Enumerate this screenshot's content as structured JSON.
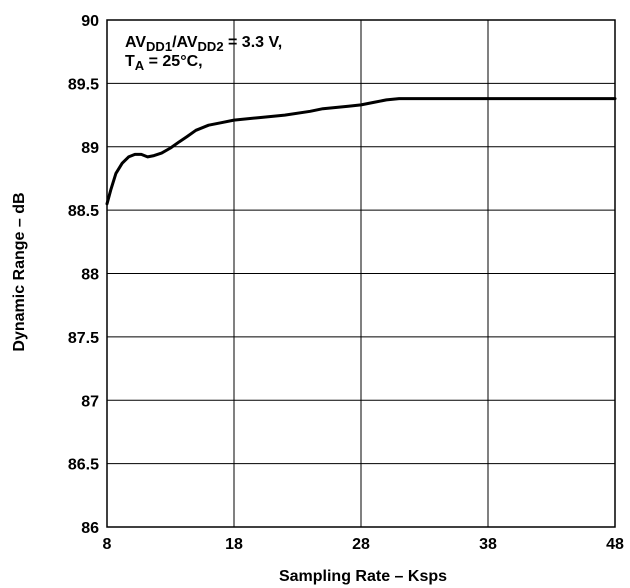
{
  "chart_data": {
    "type": "line",
    "title": "",
    "xlabel": "Sampling Rate – Ksps",
    "ylabel": "Dynamic Range – dB",
    "xlim": [
      8,
      48
    ],
    "ylim": [
      86,
      90
    ],
    "xticks": [
      8,
      18,
      28,
      38,
      48
    ],
    "xtick_labels": [
      "8",
      "18",
      "28",
      "38",
      "48"
    ],
    "yticks": [
      86,
      86.5,
      87,
      87.5,
      88,
      88.5,
      89,
      89.5,
      90
    ],
    "ytick_labels": [
      "86",
      "86.5",
      "87",
      "87.5",
      "88",
      "88.5",
      "89",
      "89.5",
      "90"
    ],
    "grid": true,
    "annotation": {
      "line1_a": "AV",
      "line1_sub1": "DD1",
      "line1_b": "/AV",
      "line1_sub2": "DD2",
      "line1_c": " = 3.3 V,",
      "line2_a": "T",
      "line2_sub": "A",
      "line2_b": " = 25°C,"
    },
    "series": [
      {
        "color": "#000000",
        "x": [
          8,
          8.3,
          8.7,
          9.2,
          9.7,
          10.2,
          10.7,
          11.2,
          11.7,
          12.3,
          13,
          13.7,
          14.3,
          15,
          16,
          17,
          18,
          20,
          22,
          24,
          25,
          26,
          27,
          28,
          29,
          30,
          31,
          34,
          38,
          42,
          46,
          48
        ],
        "y": [
          88.55,
          88.66,
          88.79,
          88.87,
          88.92,
          88.94,
          88.94,
          88.92,
          88.93,
          88.95,
          88.99,
          89.04,
          89.08,
          89.13,
          89.17,
          89.19,
          89.21,
          89.23,
          89.25,
          89.28,
          89.3,
          89.31,
          89.32,
          89.33,
          89.35,
          89.37,
          89.38,
          89.38,
          89.38,
          89.38,
          89.38,
          89.38
        ]
      }
    ]
  }
}
